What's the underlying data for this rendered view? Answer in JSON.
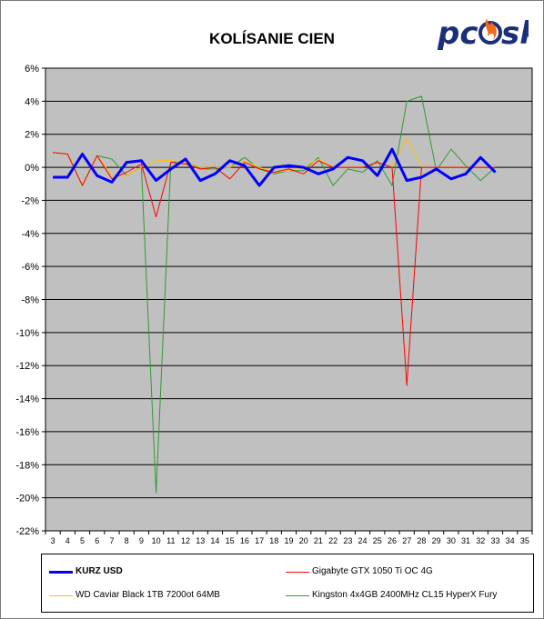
{
  "logo": {
    "text": "pc",
    "text2": "sk"
  },
  "chart_data": {
    "type": "line",
    "title": "KOLÍSANIE CIEN",
    "xlabel": "",
    "ylabel": "",
    "x_ticks": [
      3,
      4,
      5,
      6,
      7,
      8,
      9,
      10,
      11,
      12,
      13,
      14,
      15,
      16,
      17,
      18,
      19,
      20,
      21,
      22,
      23,
      24,
      25,
      26,
      27,
      28,
      29,
      30,
      31,
      32,
      33,
      34,
      35
    ],
    "ylim": [
      -22,
      6
    ],
    "y_ticks": [
      6,
      4,
      2,
      0,
      -2,
      -4,
      -6,
      -8,
      -10,
      -12,
      -14,
      -16,
      -18,
      -20,
      -22
    ],
    "y_tick_labels": [
      "6%",
      "4%",
      "2%",
      "0%",
      "-2%",
      "-4%",
      "-6%",
      "-8%",
      "-10%",
      "-12%",
      "-14%",
      "-16%",
      "-18%",
      "-20%",
      "-22%"
    ],
    "grid": true,
    "plot_background": "#c0c0c0",
    "legend_position": "bottom",
    "series": [
      {
        "name": "KURZ USD",
        "color": "#0000ff",
        "width": 3,
        "x": [
          3,
          4,
          5,
          6,
          7,
          8,
          9,
          10,
          11,
          12,
          13,
          14,
          15,
          16,
          17,
          18,
          19,
          20,
          21,
          22,
          23,
          24,
          25,
          26,
          27,
          28,
          29,
          30,
          31,
          32,
          33
        ],
        "values": [
          -0.6,
          -0.6,
          0.8,
          -0.5,
          -0.9,
          0.3,
          0.4,
          -0.8,
          -0.1,
          0.5,
          -0.8,
          -0.4,
          0.4,
          0.1,
          -1.1,
          0.0,
          0.1,
          0.0,
          -0.4,
          -0.1,
          0.6,
          0.4,
          -0.5,
          1.1,
          -0.8,
          -0.6,
          -0.1,
          -0.7,
          -0.4,
          0.6,
          -0.3
        ]
      },
      {
        "name": "Gigabyte GTX 1050 Ti OC 4G",
        "color": "#ff0000",
        "width": 1,
        "x": [
          3,
          4,
          5,
          6,
          7,
          8,
          9,
          10,
          11,
          12,
          13,
          14,
          15,
          16,
          17,
          18,
          19,
          20,
          21,
          22,
          23,
          24,
          25,
          26,
          27,
          28,
          29,
          30,
          31,
          32,
          33
        ],
        "values": [
          0.9,
          0.8,
          -1.1,
          0.7,
          -0.7,
          -0.3,
          0.2,
          -3.0,
          0.3,
          0.2,
          -0.1,
          0.0,
          -0.7,
          0.3,
          -0.1,
          -0.3,
          -0.1,
          -0.4,
          0.4,
          0.0,
          0.0,
          0.0,
          0.3,
          0.0,
          -13.2,
          0.0,
          0.0,
          0.0,
          0.0,
          0.0,
          0.0
        ]
      },
      {
        "name": "WD Caviar Black 1TB 7200ot 64MB",
        "color": "#ffc000",
        "width": 1,
        "x": [
          3,
          4,
          5,
          6,
          7,
          8,
          9,
          10,
          11,
          12,
          13,
          14,
          15,
          16,
          17,
          18,
          19,
          20,
          21,
          22,
          23,
          24,
          25,
          26,
          27,
          28,
          29,
          30,
          31,
          32,
          33
        ],
        "values": [
          0.9,
          0.8,
          -1.1,
          0.7,
          -0.5,
          -0.5,
          0.0,
          0.4,
          0.4,
          0.3,
          0.0,
          0.0,
          0.0,
          0.4,
          0.0,
          -0.3,
          -0.2,
          0.0,
          0.5,
          0.0,
          0.0,
          0.0,
          0.3,
          0.0,
          1.8,
          0.0,
          0.0,
          0.0,
          0.0,
          0.0,
          0.0
        ]
      },
      {
        "name": "Kingston 4x4GB 2400MHz CL15 HyperX Fury",
        "color": "#339933",
        "width": 1,
        "x": [
          3,
          4,
          5,
          6,
          7,
          8,
          9,
          10,
          11,
          12,
          13,
          14,
          15,
          16,
          17,
          18,
          19,
          20,
          21,
          22,
          23,
          24,
          25,
          26,
          27,
          28,
          29,
          30,
          31,
          32,
          33
        ],
        "values": [
          0.9,
          0.8,
          -1.1,
          0.7,
          0.5,
          -0.5,
          0.0,
          -19.7,
          0.3,
          0.4,
          -0.1,
          -0.1,
          0.0,
          0.6,
          -0.1,
          -0.4,
          -0.2,
          -0.2,
          0.6,
          -1.1,
          -0.1,
          -0.3,
          0.4,
          -1.1,
          4.0,
          4.3,
          -0.2,
          1.1,
          0.1,
          -0.8,
          0.0
        ]
      }
    ]
  }
}
